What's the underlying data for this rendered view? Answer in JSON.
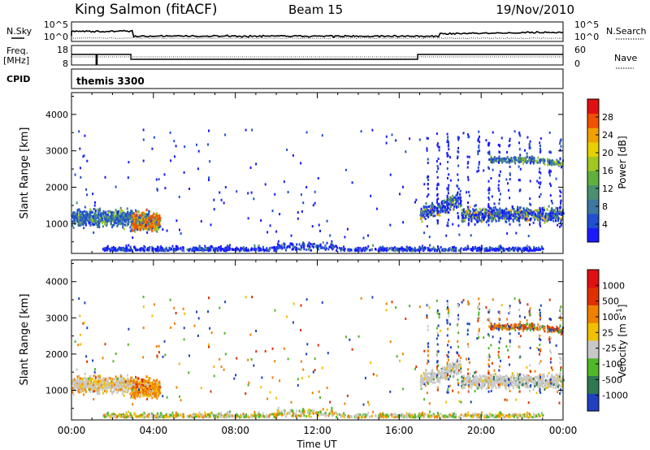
{
  "header": {
    "station": "King Salmon (fitACF)",
    "beam": "Beam 15",
    "date": "19/Nov/2010"
  },
  "strips": {
    "nsky_label": "N.Sky",
    "nsearch_label": "N.Search",
    "noise_ticks_left": [
      "10^5",
      "10^0"
    ],
    "noise_ticks_right": [
      "10^5",
      "10^0"
    ],
    "freq_label": [
      "Freq.",
      "[MHz]"
    ],
    "freq_ticks": [
      "18",
      "8"
    ],
    "nave_label": "Nave",
    "nave_ticks": [
      "60",
      "0"
    ],
    "cpid_label": "CPID",
    "cpid_value": "themis 3300"
  },
  "chart_data": [
    {
      "type": "heatmap",
      "name": "power",
      "ylabel": "Slant Range [km]",
      "xlabel": "",
      "ylim": [
        180,
        4600
      ],
      "yticks": [
        "1000",
        "2000",
        "3000",
        "4000"
      ],
      "colorbar_label": "Power [dB]",
      "colorbar_ticks": [
        "28",
        "24",
        "20",
        "16",
        "12",
        "8",
        "4"
      ],
      "colors": [
        "#1a1aff",
        "#2050d0",
        "#3c78a0",
        "#4a9070",
        "#60b040",
        "#a0c820",
        "#e8d000",
        "#f0a000",
        "#f05000",
        "#e01010"
      ]
    },
    {
      "type": "heatmap",
      "name": "velocity",
      "ylabel": "Slant Range [km]",
      "xlabel": "Time UT",
      "ylim": [
        180,
        4600
      ],
      "yticks": [
        "1000",
        "2000",
        "3000",
        "4000"
      ],
      "xticks": [
        "00:00",
        "04:00",
        "08:00",
        "12:00",
        "16:00",
        "20:00",
        "00:00"
      ],
      "colorbar_label": "Velocity [m s^-1]",
      "colorbar_ticks": [
        "1000",
        "500",
        "100",
        "25",
        "-25",
        "-100",
        "-500",
        "-1000"
      ],
      "colors": [
        "#2040c0",
        "#2e7a50",
        "#50b828",
        "#c8c8c8",
        "#f0c000",
        "#f08000",
        "#e03000",
        "#e01010"
      ]
    }
  ]
}
